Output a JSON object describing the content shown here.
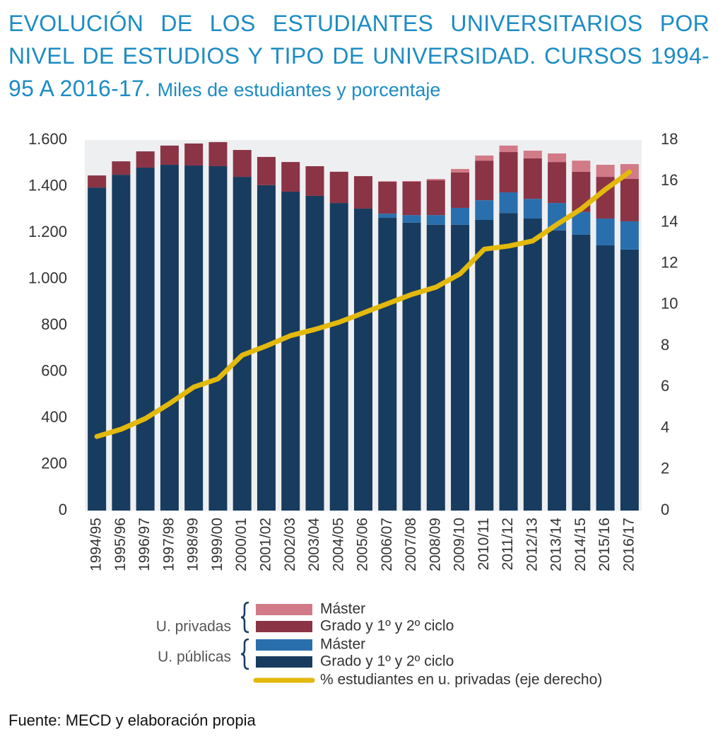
{
  "chart_data": {
    "type": "bar",
    "title": "EVOLUCIÓN DE LOS ESTUDIANTES UNIVERSITARIOS POR NIVEL DE ESTUDIOS Y TIPO DE UNIVERSIDAD. CURSOS 1994-95 A 2016-17.",
    "subtitle": "Miles de estudiantes y porcentaje",
    "source": "Fuente: MECD y elaboración propia",
    "categories": [
      "1994/95",
      "1995/96",
      "1996/97",
      "1997/98",
      "1998/99",
      "1999/00",
      "2000/01",
      "2001/02",
      "2002/03",
      "2003/04",
      "2004/05",
      "2005/06",
      "2006/07",
      "2007/08",
      "2008/09",
      "2009/10",
      "2010/11",
      "2011/12",
      "2012/13",
      "2013/14",
      "2014/15",
      "2015/16",
      "2016/17"
    ],
    "stacked": true,
    "groups": [
      "U. privadas",
      "U. públicas"
    ],
    "series": [
      {
        "name": "Grado y 1º y 2º ciclo",
        "group": "U. públicas",
        "color": "#183c5f",
        "values": [
          1395,
          1450,
          1481,
          1493,
          1490,
          1487,
          1441,
          1405,
          1377,
          1359,
          1328,
          1304,
          1264,
          1243,
          1234,
          1234,
          1255,
          1285,
          1261,
          1210,
          1191,
          1145,
          1127
        ]
      },
      {
        "name": "Máster",
        "group": "U. públicas",
        "color": "#2a6fad",
        "values": [
          null,
          null,
          null,
          null,
          null,
          null,
          null,
          null,
          null,
          null,
          null,
          null,
          18,
          33,
          42,
          73,
          85,
          89,
          85,
          118,
          98,
          116,
          122
        ]
      },
      {
        "name": "Grado y 1º y 2º ciclo",
        "group": "U. privadas",
        "color": "#8b3445",
        "values": [
          52,
          58,
          70,
          83,
          95,
          104,
          116,
          122,
          128,
          128,
          135,
          140,
          138,
          144,
          150,
          153,
          171,
          174,
          175,
          177,
          174,
          180,
          183
        ]
      },
      {
        "name": "Máster",
        "group": "U. privadas",
        "color": "#d27a87",
        "values": [
          null,
          null,
          null,
          null,
          null,
          null,
          null,
          null,
          null,
          null,
          null,
          null,
          2,
          3,
          6,
          15,
          22,
          28,
          33,
          37,
          48,
          52,
          64
        ]
      },
      {
        "name": "% estudiantes en u. privadas (eje derecho)",
        "type": "line",
        "axis": "y2",
        "color": "#e2b90c",
        "values": [
          3.6,
          3.95,
          4.47,
          5.2,
          6.0,
          6.4,
          7.55,
          8.0,
          8.5,
          8.8,
          9.15,
          9.6,
          10.05,
          10.5,
          10.85,
          11.5,
          12.7,
          12.85,
          13.1,
          13.9,
          14.65,
          15.6,
          16.45
        ]
      }
    ],
    "ylim": [
      0,
      1600
    ],
    "yticks": [
      0,
      200,
      400,
      600,
      800,
      {
        "value": 1000,
        "label": "1.000"
      },
      {
        "value": 1200,
        "label": "1.200"
      },
      {
        "value": 1400,
        "label": "1.400"
      },
      {
        "value": 1600,
        "label": "1.600"
      }
    ],
    "y2lim": [
      0,
      18
    ],
    "y2ticks": [
      0,
      2,
      4,
      6,
      8,
      10,
      12,
      14,
      16,
      18
    ]
  }
}
